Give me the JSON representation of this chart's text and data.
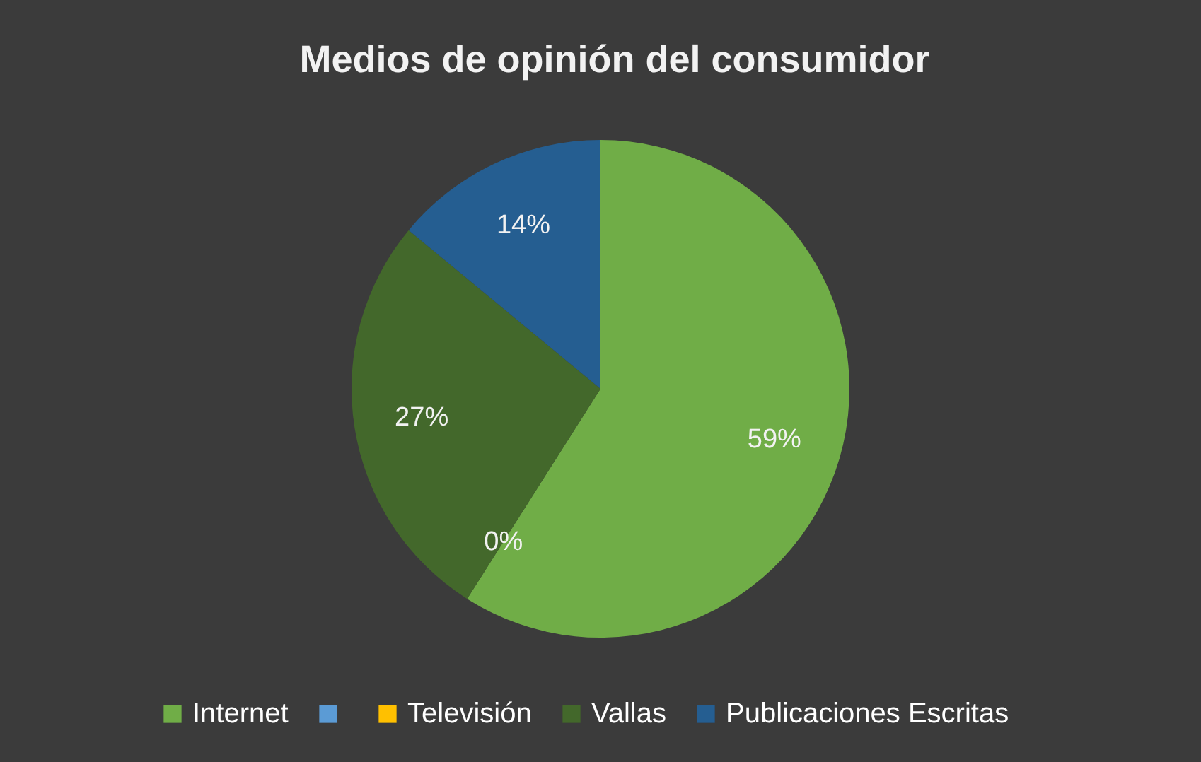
{
  "chart_data": {
    "type": "pie",
    "title": "Medios de opinión del consumidor",
    "categories": [
      "Internet",
      null,
      "Televisión",
      "Vallas",
      "Publicaciones Escritas"
    ],
    "values": [
      59,
      0,
      0,
      27,
      14
    ],
    "colors": [
      "#70ad47",
      "#5b9bd5",
      "#ffc000",
      "#43682b",
      "#255e91"
    ],
    "value_labels": [
      "59%",
      null,
      "0%",
      "27%",
      "14%"
    ],
    "legend": "bottom"
  }
}
